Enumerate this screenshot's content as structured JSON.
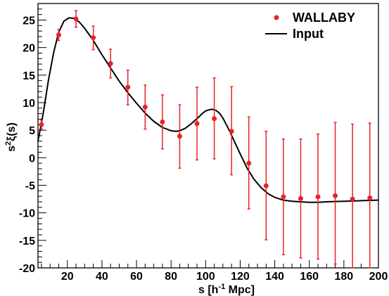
{
  "chart_data": {
    "type": "scatter",
    "title": "",
    "xlabel": "s [h",
    "xlabel_sup": "-1",
    "xlabel_tail": " Mpc]",
    "ylabel": "s",
    "ylabel_sup": "2",
    "ylabel_tail": "ξ(s)",
    "xlim": [
      3,
      200
    ],
    "ylim": [
      -20,
      28
    ],
    "x_ticks": [
      20,
      40,
      60,
      80,
      100,
      120,
      140,
      160,
      180,
      200
    ],
    "y_ticks": [
      -20,
      -15,
      -10,
      -5,
      0,
      5,
      10,
      15,
      20,
      25
    ],
    "x_minor_step": 5,
    "y_minor_step": 1,
    "grid": false,
    "legend_position": "top-right",
    "series": [
      {
        "name": "WALLABY",
        "kind": "points_with_errorbars",
        "color": "#e8232a",
        "x": [
          5,
          15,
          25,
          35,
          45,
          55,
          65,
          75,
          85,
          95,
          105,
          115,
          125,
          135,
          145,
          155,
          165,
          175,
          185,
          195
        ],
        "y": [
          6.0,
          22.3,
          25.2,
          21.8,
          17.1,
          12.8,
          9.2,
          6.5,
          3.9,
          6.2,
          7.1,
          4.8,
          -1.0,
          -5.1,
          -7.1,
          -7.4,
          -7.1,
          -6.9,
          -7.5,
          -7.3
        ],
        "err_low": [
          0.8,
          1.0,
          1.5,
          2.2,
          2.6,
          3.2,
          4.0,
          4.9,
          5.8,
          6.6,
          7.3,
          7.9,
          8.3,
          9.8,
          10.5,
          10.8,
          11.3,
          12.4,
          12.6,
          12.7
        ],
        "err_high": [
          0.8,
          1.0,
          1.5,
          2.1,
          2.6,
          3.1,
          4.0,
          4.9,
          5.7,
          6.6,
          7.4,
          8.1,
          8.4,
          9.9,
          10.5,
          10.8,
          11.4,
          13.3,
          13.6,
          13.6
        ]
      },
      {
        "name": "Input",
        "kind": "line",
        "color": "#000000",
        "x": [
          3,
          6,
          9,
          12,
          15,
          18,
          21,
          24,
          27,
          30,
          35,
          40,
          45,
          50,
          55,
          60,
          65,
          70,
          75,
          80,
          83,
          85,
          88,
          91,
          95,
          98,
          100,
          102,
          104,
          106,
          108,
          110,
          113,
          116,
          120,
          124,
          128,
          132,
          136,
          140,
          145,
          150,
          155,
          160,
          165,
          170,
          180,
          190,
          200
        ],
        "y": [
          3.0,
          8.0,
          14.0,
          19.0,
          22.8,
          24.8,
          25.4,
          25.3,
          24.6,
          23.5,
          21.3,
          18.7,
          16.3,
          13.9,
          11.8,
          9.9,
          8.1,
          6.6,
          5.5,
          4.9,
          4.8,
          4.9,
          5.3,
          6.0,
          7.1,
          8.0,
          8.5,
          8.7,
          8.8,
          8.6,
          8.1,
          7.2,
          5.4,
          3.4,
          0.7,
          -1.9,
          -3.9,
          -5.4,
          -6.5,
          -7.2,
          -7.7,
          -7.9,
          -8.0,
          -8.1,
          -8.1,
          -8.0,
          -7.9,
          -7.8,
          -7.7
        ]
      }
    ]
  }
}
